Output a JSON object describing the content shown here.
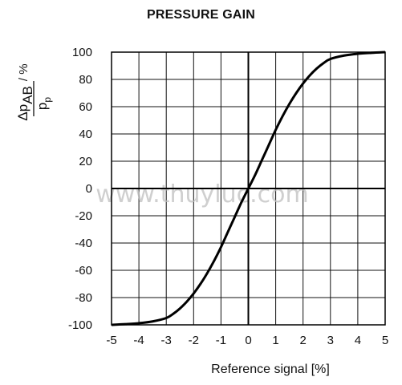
{
  "chart_data": {
    "type": "line",
    "title": "PRESSURE GAIN",
    "xlabel": "Reference signal [%]",
    "ylabel": {
      "numerator": "Δp",
      "numerator_sub": "AB",
      "denominator": "p",
      "denominator_sub": "p",
      "unit": "/ %"
    },
    "xlim": [
      -5,
      5
    ],
    "ylim": [
      -100,
      100
    ],
    "xticks": [
      "-5",
      "-4",
      "-3",
      "-2",
      "-1",
      "0",
      "1",
      "2",
      "3",
      "4",
      "5"
    ],
    "yticks": [
      "100",
      "80",
      "60",
      "40",
      "20",
      "0",
      "-20",
      "-40",
      "-60",
      "-80",
      "-100"
    ],
    "grid": true,
    "series": [
      {
        "x": [
          -5,
          -4.5,
          -4,
          -3.5,
          -3,
          -2.75,
          -2.5,
          -2.25,
          -2,
          -1.75,
          -1.5,
          -1.25,
          -1,
          -0.75,
          -0.5,
          -0.25,
          0,
          0.25,
          0.5,
          0.75,
          1,
          1.25,
          1.5,
          1.75,
          2,
          2.25,
          2.5,
          2.75,
          3,
          3.5,
          4,
          4.5,
          5
        ],
        "y": [
          -100,
          -99.5,
          -98.8,
          -97.5,
          -95,
          -92,
          -88,
          -83,
          -77,
          -70,
          -62,
          -53,
          -43,
          -32,
          -21,
          -10,
          0,
          10,
          21,
          32,
          43,
          53,
          62,
          70,
          77,
          83,
          88,
          92,
          95,
          97.5,
          98.8,
          99.5,
          100
        ]
      }
    ]
  },
  "watermark": "www.thuyluc.com"
}
